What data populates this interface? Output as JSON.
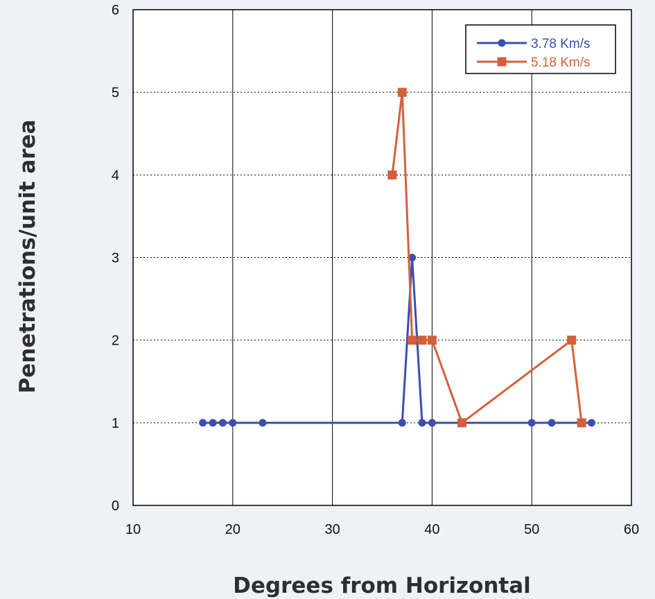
{
  "chart_data": {
    "type": "line",
    "xlabel": "Degrees from Horizontal",
    "ylabel": "Penetrations/unit area",
    "xlim": [
      10,
      60
    ],
    "ylim": [
      0,
      6
    ],
    "x_ticks": [
      10,
      20,
      30,
      40,
      50,
      60
    ],
    "y_ticks": [
      0,
      1,
      2,
      3,
      4,
      5,
      6
    ],
    "vertical_grid": "solid",
    "horizontal_grid": "dotted",
    "legend_position": "top-right",
    "series": [
      {
        "name": "3.78 Km/s",
        "color": "#3c4db0",
        "marker": "circle",
        "points": [
          [
            17,
            1
          ],
          [
            18,
            1
          ],
          [
            19,
            1
          ],
          [
            20,
            1
          ],
          [
            23,
            1
          ],
          [
            37,
            1
          ],
          [
            38,
            3
          ],
          [
            39,
            1
          ],
          [
            40,
            1
          ],
          [
            50,
            1
          ],
          [
            52,
            1
          ],
          [
            56,
            1
          ]
        ]
      },
      {
        "name": "5.18 Km/s",
        "color": "#d4603a",
        "marker": "square",
        "points": [
          [
            36,
            4
          ],
          [
            37,
            5
          ],
          [
            38,
            2
          ],
          [
            39,
            2
          ],
          [
            40,
            2
          ],
          [
            43,
            1
          ],
          [
            54,
            2
          ],
          [
            55,
            1
          ]
        ]
      }
    ]
  }
}
